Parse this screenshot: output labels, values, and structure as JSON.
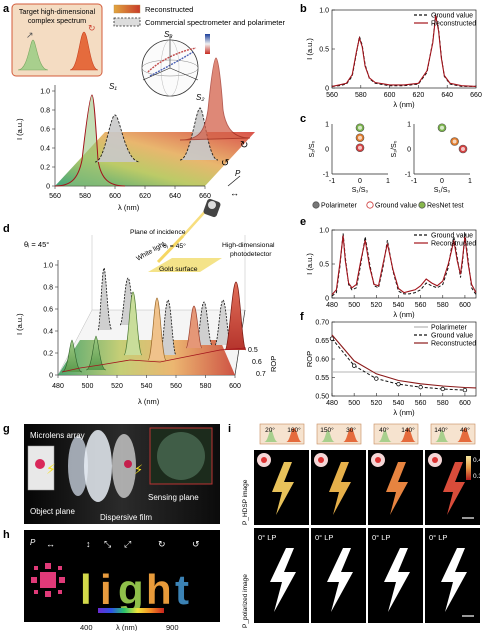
{
  "panel_letters": {
    "a": "a",
    "b": "b",
    "c": "c",
    "d": "d",
    "e": "e",
    "f": "f",
    "g": "g",
    "h": "h",
    "i": "i"
  },
  "panel_a": {
    "target_box": "Target high-dimensional\ncomplex spectrum",
    "legend_reconstructed": "Reconstructed",
    "legend_commercial": "Commercial spectrometer and polarimeter",
    "sphere_labels": {
      "s1": "S₁",
      "s2": "S₂",
      "s3": "S₃"
    },
    "y_label": "I (a.u.)",
    "y_ticks": [
      "0",
      "0.2",
      "0.4",
      "0.6",
      "0.8",
      "1.0"
    ],
    "x_label": "λ (nm)",
    "x_ticks": [
      "560",
      "580",
      "600",
      "620",
      "640",
      "660"
    ],
    "p_label": "P",
    "arrow_labels": [
      "↻",
      "↺"
    ]
  },
  "panel_d": {
    "theta_i": "θᵢ = 45°",
    "plane_of_incidence": "Plane of incidence",
    "theta_i_inner": "θᵢ = 45°",
    "white_light": "White light",
    "gold_surface": "Gold surface",
    "detector": "High-dimensional\nphotodetector",
    "y_label": "I (a.u.)",
    "y_ticks": [
      "0",
      "0.2",
      "0.4",
      "0.6",
      "0.8",
      "1.0"
    ],
    "x_label": "λ (nm)",
    "x_ticks": [
      "480",
      "500",
      "520",
      "540",
      "560",
      "580",
      "600"
    ],
    "rop_label": "ROP",
    "rop_ticks": [
      "0.5",
      "0.6",
      "0.7"
    ]
  },
  "panel_g": {
    "microlens": "Microlens array",
    "object_plane": "Object plane",
    "sensing_plane": "Sensing plane",
    "dispersive_film": "Dispersive film"
  },
  "panel_h": {
    "p_label": "P",
    "word": [
      "l",
      "i",
      "g",
      "h",
      "t"
    ],
    "colorbar_min": "400",
    "colorbar_label": "λ (nm)",
    "colorbar_max": "900"
  },
  "panel_i": {
    "angle_pairs": [
      [
        "20°",
        "160°"
      ],
      [
        "150°",
        "30°"
      ],
      [
        "40°",
        "140°"
      ],
      [
        "140°",
        "40°"
      ]
    ],
    "row1_label": "P_HDSP image",
    "row2_label": "P_polarized image",
    "lp_label": "0° LP",
    "scale_top": "0.4",
    "scale_bottom": "0.3"
  },
  "chart_data": [
    {
      "panel": "b",
      "type": "line",
      "xlabel": "λ (nm)",
      "ylabel": "I (a.u.)",
      "xlim": [
        560,
        660
      ],
      "ylim": [
        0,
        1.0
      ],
      "x_ticks": [
        "560",
        "580",
        "600",
        "620",
        "640",
        "660"
      ],
      "y_ticks": [
        "0",
        "0.5",
        "1.0"
      ],
      "legend": "top-right",
      "series": [
        {
          "name": "Ground value",
          "style": "dashed",
          "color": "#111111",
          "x": [
            560,
            565,
            570,
            574,
            577,
            579,
            581,
            583,
            586,
            590,
            600,
            610,
            620,
            626,
            630,
            632,
            634,
            636,
            638,
            642,
            650,
            660
          ],
          "y": [
            0.02,
            0.03,
            0.05,
            0.15,
            0.45,
            0.66,
            0.55,
            0.3,
            0.12,
            0.06,
            0.03,
            0.03,
            0.05,
            0.2,
            0.6,
            0.95,
            0.75,
            0.4,
            0.15,
            0.05,
            0.02,
            0.02
          ]
        },
        {
          "name": "Reconstructed",
          "style": "solid",
          "color": "#a3141c",
          "x": [
            560,
            565,
            570,
            574,
            577,
            579,
            581,
            583,
            586,
            590,
            600,
            610,
            620,
            626,
            630,
            632,
            634,
            636,
            638,
            642,
            650,
            660
          ],
          "y": [
            0.02,
            0.04,
            0.06,
            0.17,
            0.47,
            0.64,
            0.53,
            0.28,
            0.13,
            0.07,
            0.04,
            0.04,
            0.06,
            0.22,
            0.58,
            0.93,
            0.73,
            0.38,
            0.16,
            0.06,
            0.03,
            0.02
          ]
        }
      ]
    },
    {
      "panel": "c",
      "type": "scatter",
      "plots": [
        {
          "xlabel": "S₁/S₀",
          "ylabel": "S₂/S₀",
          "xlim": [
            -1,
            1
          ],
          "ylim": [
            -1,
            1
          ],
          "x_ticks": [
            "-1",
            "0",
            "1"
          ],
          "y_ticks": [
            "-1",
            "0",
            "1"
          ]
        },
        {
          "xlabel": "S₁/S₀",
          "ylabel": "S₃/S₀",
          "xlim": [
            -1,
            1
          ],
          "ylim": [
            -1,
            1
          ],
          "x_ticks": [
            "-1",
            "0",
            "1"
          ],
          "y_ticks": [
            "-1",
            "0",
            "1"
          ]
        }
      ],
      "series": [
        {
          "name": "Polarimeter",
          "color": "#777777",
          "x_left": [
            0.0,
            0.0
          ],
          "y_left": [
            0.85,
            0.05
          ],
          "x_right": [
            0.0,
            0.45,
            0.75
          ],
          "y_right": [
            0.85,
            0.3,
            0.0
          ]
        },
        {
          "name": "Ground value",
          "color": "#ffffff",
          "x_left": [
            0.0,
            0.0,
            0.0
          ],
          "y_left": [
            0.85,
            0.45,
            0.05
          ],
          "x_right": [
            0.0,
            0.45,
            0.75
          ],
          "y_right": [
            0.85,
            0.3,
            0.0
          ]
        },
        {
          "name": "ResNet test",
          "color": "#88b84c",
          "x_left": [
            0.0,
            0.0,
            0.0
          ],
          "y_left": [
            0.85,
            0.45,
            0.05
          ],
          "x_right": [
            0.0,
            0.45,
            0.75
          ],
          "y_right": [
            0.85,
            0.3,
            0.0
          ]
        }
      ],
      "legend": "bottom"
    },
    {
      "panel": "e",
      "type": "line",
      "xlabel": "λ (nm)",
      "ylabel": "I (a.u.)",
      "xlim": [
        480,
        610
      ],
      "ylim": [
        0,
        1.0
      ],
      "x_ticks": [
        "480",
        "500",
        "520",
        "540",
        "560",
        "580",
        "600"
      ],
      "y_ticks": [
        "0",
        "0.5",
        "1.0"
      ],
      "legend": "top-right",
      "series": [
        {
          "name": "Ground value",
          "style": "dashed",
          "color": "#111111",
          "x": [
            480,
            484,
            487,
            490,
            492,
            495,
            498,
            502,
            506,
            510,
            514,
            518,
            522,
            526,
            530,
            535,
            540,
            545,
            550,
            555,
            560,
            565,
            570,
            575,
            580,
            585,
            588,
            590,
            593,
            596,
            598,
            600,
            603,
            606,
            610
          ],
          "y": [
            0.03,
            0.08,
            0.45,
            0.95,
            0.6,
            0.2,
            0.12,
            0.15,
            0.5,
            0.9,
            0.5,
            0.18,
            0.15,
            0.45,
            0.85,
            0.4,
            0.1,
            0.06,
            0.06,
            0.08,
            0.12,
            0.22,
            0.18,
            0.15,
            0.2,
            0.45,
            0.75,
            0.9,
            0.6,
            0.3,
            0.55,
            0.95,
            0.55,
            0.15,
            0.05
          ]
        },
        {
          "name": "Reconstructed",
          "style": "solid",
          "color": "#a3141c",
          "x": [
            480,
            484,
            487,
            490,
            492,
            495,
            498,
            502,
            506,
            510,
            514,
            518,
            522,
            526,
            530,
            535,
            540,
            545,
            550,
            555,
            560,
            565,
            570,
            575,
            580,
            585,
            588,
            590,
            593,
            596,
            598,
            600,
            603,
            606,
            610
          ],
          "y": [
            0.05,
            0.12,
            0.5,
            0.92,
            0.55,
            0.22,
            0.15,
            0.2,
            0.55,
            0.85,
            0.45,
            0.2,
            0.18,
            0.5,
            0.8,
            0.42,
            0.14,
            0.08,
            0.1,
            0.12,
            0.18,
            0.28,
            0.22,
            0.18,
            0.25,
            0.5,
            0.7,
            0.85,
            0.55,
            0.35,
            0.6,
            0.9,
            0.5,
            0.2,
            0.08
          ]
        }
      ]
    },
    {
      "panel": "f",
      "type": "line",
      "xlabel": "λ (nm)",
      "ylabel": "ROP",
      "xlim": [
        480,
        610
      ],
      "ylim": [
        0.5,
        0.7
      ],
      "x_ticks": [
        "480",
        "500",
        "520",
        "540",
        "560",
        "580",
        "600"
      ],
      "y_ticks": [
        "0.50",
        "0.55",
        "0.60",
        "0.65",
        "0.70"
      ],
      "legend": "top-right",
      "series": [
        {
          "name": "Polarimeter",
          "style": "solid",
          "color": "#b5b5b5",
          "x": [
            480,
            610
          ],
          "y": [
            0.565,
            0.565
          ]
        },
        {
          "name": "Ground value",
          "style": "dashed-markers",
          "color": "#111111",
          "x": [
            480,
            500,
            520,
            540,
            560,
            580,
            600
          ],
          "y": [
            0.655,
            0.582,
            0.547,
            0.532,
            0.524,
            0.519,
            0.516
          ]
        },
        {
          "name": "Reconstructed",
          "style": "solid",
          "color": "#8b1a1a",
          "x": [
            480,
            500,
            520,
            540,
            560,
            580,
            600,
            610
          ],
          "y": [
            0.665,
            0.595,
            0.56,
            0.542,
            0.533,
            0.527,
            0.523,
            0.522
          ]
        }
      ]
    }
  ]
}
